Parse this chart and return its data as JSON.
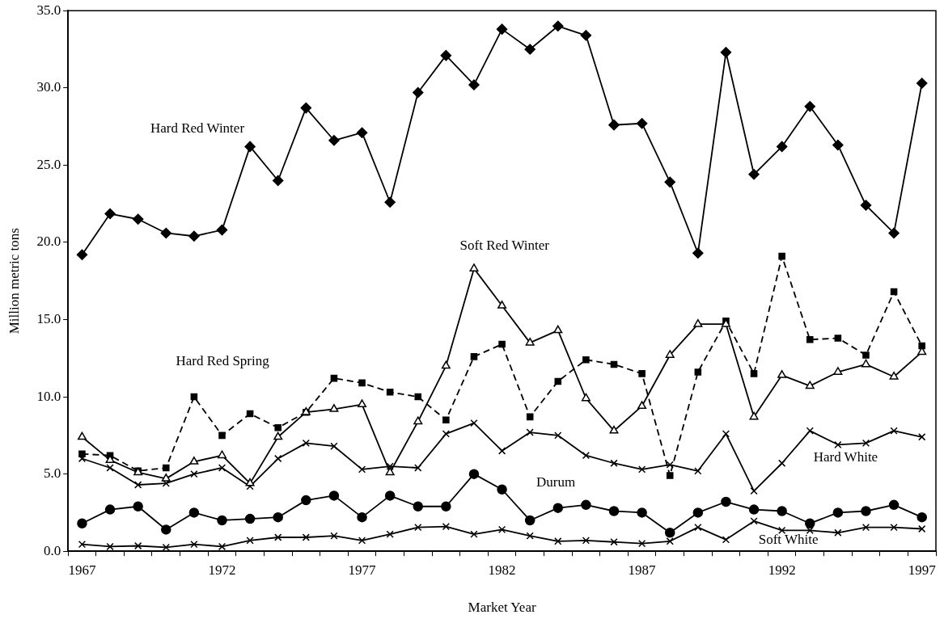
{
  "chart_data": {
    "type": "line",
    "xlabel": "Market Year",
    "ylabel": "Million metric tons",
    "categories": [
      "1967",
      null,
      null,
      null,
      null,
      "1972",
      null,
      null,
      null,
      null,
      "1977",
      null,
      null,
      null,
      null,
      "1982",
      null,
      null,
      null,
      null,
      "1987",
      null,
      null,
      null,
      null,
      "1992",
      null,
      null,
      null,
      null,
      "1997"
    ],
    "ylim": [
      0,
      35
    ],
    "yticks": [
      {
        "value": 0,
        "label": "0.0"
      },
      {
        "value": 5,
        "label": "5.0"
      },
      {
        "value": 10,
        "label": "10.0"
      },
      {
        "value": 15,
        "label": "15.0"
      },
      {
        "value": 20,
        "label": "20.0"
      },
      {
        "value": 25,
        "label": "25.0"
      },
      {
        "value": 30,
        "label": "30.0"
      },
      {
        "value": 35,
        "label": "35.0"
      }
    ],
    "grid": false,
    "legend": false,
    "series": [
      {
        "name": "Hard Red Winter",
        "color": "#000000",
        "marker": "diamond",
        "line_style": "solid",
        "values": [
          19.2,
          21.85,
          21.5,
          20.6,
          20.4,
          20.8,
          26.2,
          24.0,
          28.7,
          26.6,
          27.1,
          22.6,
          29.7,
          32.1,
          30.2,
          33.8,
          32.5,
          34.0,
          33.4,
          27.6,
          27.7,
          23.9,
          19.3,
          32.3,
          24.4,
          26.2,
          28.8,
          26.3,
          22.4,
          20.6,
          30.3
        ]
      },
      {
        "name": "Soft Red Winter",
        "color": "#000000",
        "marker": "triangle",
        "line_style": "solid",
        "values": [
          7.4,
          5.9,
          5.1,
          4.7,
          5.8,
          6.2,
          4.4,
          7.4,
          9.0,
          9.2,
          9.5,
          5.1,
          8.4,
          12.0,
          18.3,
          15.9,
          13.5,
          14.3,
          9.9,
          7.8,
          9.4,
          12.7,
          14.7,
          14.7,
          8.7,
          11.4,
          10.7,
          11.6,
          12.1,
          11.3,
          12.9
        ]
      },
      {
        "name": "Hard Red Spring",
        "color": "#000000",
        "marker": "square",
        "line_style": "dashed",
        "values": [
          6.3,
          6.2,
          5.2,
          5.4,
          10.0,
          7.5,
          8.9,
          8.0,
          9.0,
          11.2,
          10.9,
          10.3,
          10.0,
          8.5,
          12.6,
          13.4,
          8.7,
          11.0,
          12.4,
          12.1,
          11.5,
          4.9,
          11.6,
          14.9,
          11.5,
          19.1,
          13.7,
          13.8,
          12.7,
          16.8,
          13.3
        ]
      },
      {
        "name": "Hard White",
        "color": "#000000",
        "marker": "cross",
        "line_style": "solid",
        "values": [
          6.0,
          5.4,
          4.3,
          4.4,
          5.0,
          5.4,
          4.2,
          6.0,
          7.0,
          6.8,
          5.3,
          5.5,
          5.4,
          7.6,
          8.3,
          6.5,
          7.7,
          7.5,
          6.2,
          5.7,
          5.3,
          5.6,
          5.2,
          7.6,
          3.9,
          5.7,
          7.8,
          6.9,
          7.0,
          7.8,
          7.4
        ]
      },
      {
        "name": "Durum",
        "color": "#000000",
        "marker": "circle",
        "line_style": "solid",
        "values": [
          1.8,
          2.7,
          2.9,
          1.4,
          2.5,
          2.0,
          2.1,
          2.2,
          3.3,
          3.6,
          2.2,
          3.6,
          2.9,
          2.9,
          5.0,
          4.0,
          2.0,
          2.8,
          3.0,
          2.6,
          2.5,
          1.2,
          2.5,
          3.2,
          2.7,
          2.6,
          1.8,
          2.5,
          2.6,
          3.0,
          2.2
        ]
      },
      {
        "name": "Soft White",
        "color": "#000000",
        "marker": "cross",
        "line_style": "solid",
        "values": [
          0.45,
          0.3,
          0.35,
          0.25,
          0.45,
          0.3,
          0.7,
          0.9,
          0.9,
          1.0,
          0.7,
          1.1,
          1.55,
          1.6,
          1.1,
          1.4,
          1.0,
          0.65,
          0.7,
          0.6,
          0.5,
          0.65,
          1.55,
          0.75,
          1.95,
          1.35,
          1.35,
          1.2,
          1.55,
          1.55,
          1.45
        ]
      }
    ]
  }
}
